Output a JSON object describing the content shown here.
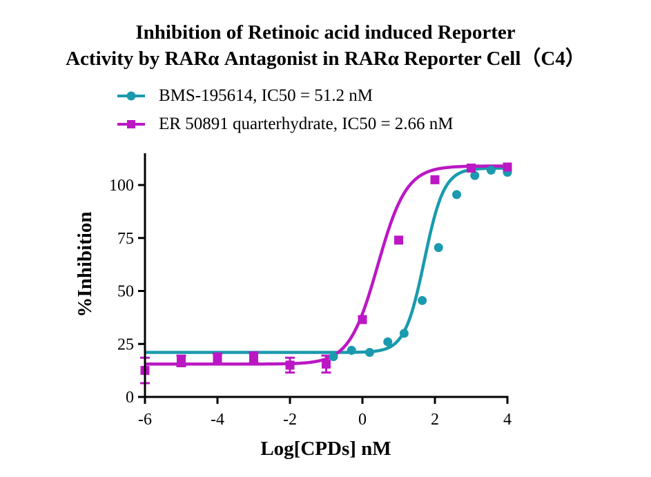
{
  "chart_data": {
    "type": "scatter",
    "title_line1": "Inhibition of Retinoic acid induced Reporter",
    "title_line2": "Activity by RARα Antagonist in RARα Reporter Cell（C4）",
    "xlabel": "Log[CPDs] nM",
    "ylabel": "%Inhibition",
    "xlim": [
      -6,
      4
    ],
    "ylim": [
      0,
      115
    ],
    "xticks": [
      -6,
      -4,
      -2,
      0,
      2,
      4
    ],
    "xtick_labels": [
      "-6",
      "-4",
      "-2",
      "0",
      "2",
      "4"
    ],
    "yticks": [
      0,
      25,
      50,
      75,
      100
    ],
    "ytick_labels": [
      "0",
      "25",
      "50",
      "75",
      "100"
    ],
    "grid": false,
    "legend_position": "top",
    "series": [
      {
        "name": "BMS-195614, IC50 = 51.2 nM",
        "color": "#1a9aae",
        "marker": "circle",
        "x": [
          -0.8,
          -0.3,
          0.2,
          0.7,
          1.15,
          1.65,
          2.1,
          2.6,
          3.1,
          3.55,
          4.0
        ],
        "y": [
          19,
          22,
          21,
          26,
          30,
          45.5,
          70.5,
          95.5,
          104.5,
          107,
          106
        ],
        "err": [
          0,
          0,
          0,
          0,
          0,
          0,
          0,
          0,
          0,
          0,
          0
        ],
        "fit": {
          "bottom": 21,
          "top": 108,
          "logEC50": 1.709,
          "hill": 1.6
        }
      },
      {
        "name": "ER 50891 quarterhydrate, IC50 = 2.66 nM",
        "color": "#bb17c4",
        "marker": "square",
        "x": [
          -6,
          -5,
          -4,
          -3,
          -2,
          -1,
          0,
          1,
          2,
          3,
          4
        ],
        "y": [
          12.5,
          17,
          18,
          18.5,
          15,
          15.5,
          36.5,
          74,
          102.5,
          108,
          108.5
        ],
        "err": [
          6,
          2.5,
          2.5,
          2.5,
          3.5,
          4,
          0,
          0,
          0,
          0,
          0
        ],
        "fit": {
          "bottom": 15.5,
          "top": 109,
          "logEC50": 0.425,
          "hill": 1.1
        }
      }
    ]
  }
}
